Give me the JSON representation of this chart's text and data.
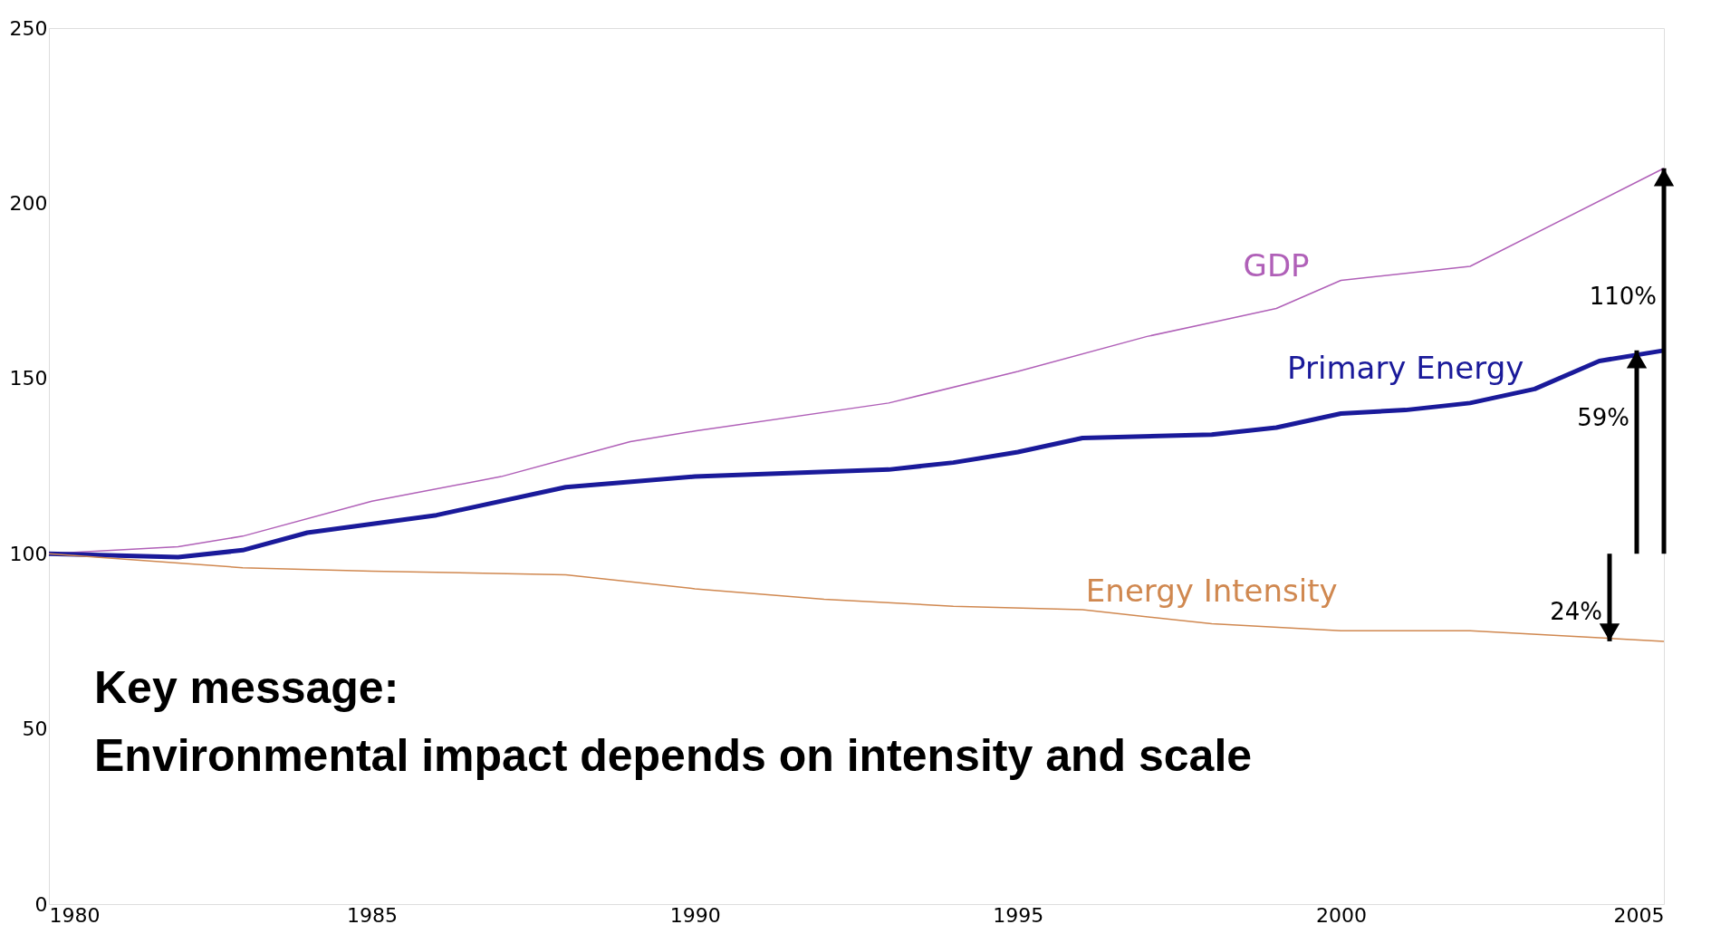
{
  "chart_data": {
    "type": "line",
    "xlim": [
      1980,
      2005
    ],
    "xticks": [
      1980,
      1985,
      1990,
      1995,
      2000,
      2005
    ],
    "ylim": [
      0,
      250
    ],
    "yticks": [
      0,
      50,
      100,
      150,
      200,
      250
    ],
    "grid": false,
    "marker": "none",
    "series": [
      {
        "name": "GDP",
        "color": "#b060b8",
        "x": [
          1980,
          1982,
          1983,
          1985,
          1987,
          1989,
          1990,
          1993,
          1995,
          1997,
          1998,
          1999,
          2000,
          2002,
          2005
        ],
        "values": [
          100,
          102,
          105,
          115,
          122,
          132,
          135,
          143,
          152,
          162,
          166,
          170,
          178,
          182,
          210
        ]
      },
      {
        "name": "Primary Energy",
        "color": "#1a1a9a",
        "x": [
          1980,
          1982,
          1983,
          1984,
          1986,
          1988,
          1990,
          1993,
          1994,
          1995,
          1996,
          1998,
          1999,
          2000,
          2001,
          2002,
          2003,
          2004,
          2005
        ],
        "values": [
          100,
          99,
          101,
          106,
          111,
          119,
          122,
          124,
          126,
          129,
          133,
          134,
          136,
          140,
          141,
          143,
          147,
          155,
          158
        ]
      },
      {
        "name": "Energy Intensity",
        "color": "#d08850",
        "x": [
          1980,
          1983,
          1985,
          1988,
          1990,
          1992,
          1994,
          1996,
          1998,
          2000,
          2002,
          2004,
          2005
        ],
        "values": [
          100,
          96,
          95,
          94,
          90,
          87,
          85,
          84,
          80,
          78,
          78,
          76,
          75
        ]
      }
    ],
    "annotations": [
      "110%",
      "59%",
      "24%",
      "Key message:",
      "Environmental impact depends on intensity and scale"
    ]
  }
}
